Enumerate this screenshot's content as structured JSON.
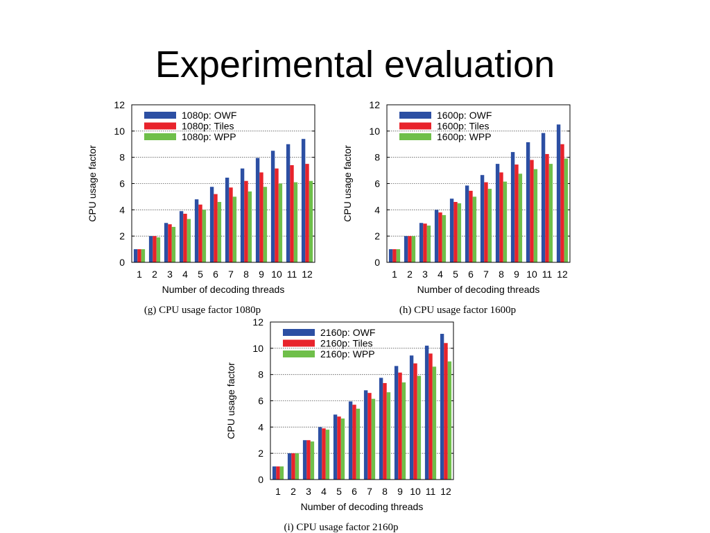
{
  "slide": {
    "title": "Experimental evaluation"
  },
  "chart_data": [
    {
      "type": "bar",
      "caption": "(g) CPU usage factor 1080p",
      "xlabel": "Number of decoding threads",
      "ylabel": "CPU usage factor",
      "ylim": [
        0,
        12
      ],
      "yticks": [
        "0",
        "2",
        "4",
        "6",
        "8",
        "10",
        "12"
      ],
      "grid": true,
      "legend": "top-left",
      "categories": [
        "1",
        "2",
        "3",
        "4",
        "5",
        "6",
        "7",
        "8",
        "9",
        "10",
        "11",
        "12"
      ],
      "series": [
        {
          "name": "1080p: OWF",
          "color": "#2c4fa3",
          "values": [
            1.0,
            2.0,
            3.0,
            3.9,
            4.8,
            5.75,
            6.45,
            7.15,
            7.95,
            8.5,
            9.0,
            9.4
          ]
        },
        {
          "name": "1080p: Tiles",
          "color": "#e8232b",
          "values": [
            1.0,
            2.0,
            2.9,
            3.7,
            4.4,
            5.2,
            5.7,
            6.2,
            6.85,
            7.15,
            7.4,
            7.5
          ]
        },
        {
          "name": "1080p: WPP",
          "color": "#6fbf4a",
          "values": [
            1.0,
            1.9,
            2.7,
            3.3,
            4.0,
            4.6,
            5.0,
            5.4,
            5.75,
            6.0,
            6.1,
            6.2
          ]
        }
      ]
    },
    {
      "type": "bar",
      "caption": "(h) CPU usage factor 1600p",
      "xlabel": "Number of decoding threads",
      "ylabel": "CPU usage factor",
      "ylim": [
        0,
        12
      ],
      "yticks": [
        "0",
        "2",
        "4",
        "6",
        "8",
        "10",
        "12"
      ],
      "grid": true,
      "legend": "top-left",
      "categories": [
        "1",
        "2",
        "3",
        "4",
        "5",
        "6",
        "7",
        "8",
        "9",
        "10",
        "11",
        "12"
      ],
      "series": [
        {
          "name": "1600p: OWF",
          "color": "#2c4fa3",
          "values": [
            1.0,
            2.0,
            3.0,
            4.0,
            4.85,
            5.85,
            6.65,
            7.5,
            8.4,
            9.15,
            9.85,
            10.5
          ]
        },
        {
          "name": "1600p: Tiles",
          "color": "#e8232b",
          "values": [
            1.0,
            2.0,
            2.95,
            3.8,
            4.6,
            5.45,
            6.1,
            6.85,
            7.45,
            7.8,
            8.25,
            9.0
          ]
        },
        {
          "name": "1600p: WPP",
          "color": "#6fbf4a",
          "values": [
            1.0,
            2.0,
            2.8,
            3.6,
            4.5,
            5.0,
            5.6,
            6.15,
            6.75,
            7.1,
            7.5,
            7.9
          ]
        }
      ]
    },
    {
      "type": "bar",
      "caption": "(i) CPU usage factor 2160p",
      "xlabel": "Number of decoding threads",
      "ylabel": "CPU usage factor",
      "ylim": [
        0,
        12
      ],
      "yticks": [
        "0",
        "2",
        "4",
        "6",
        "8",
        "10",
        "12"
      ],
      "grid": true,
      "legend": "top-left",
      "categories": [
        "1",
        "2",
        "3",
        "4",
        "5",
        "6",
        "7",
        "8",
        "9",
        "10",
        "11",
        "12"
      ],
      "series": [
        {
          "name": "2160p: OWF",
          "color": "#2c4fa3",
          "values": [
            1.0,
            2.0,
            3.0,
            4.0,
            4.95,
            5.95,
            6.8,
            7.75,
            8.65,
            9.45,
            10.2,
            11.1
          ]
        },
        {
          "name": "2160p: Tiles",
          "color": "#e8232b",
          "values": [
            1.0,
            2.0,
            3.0,
            3.9,
            4.8,
            5.7,
            6.6,
            7.35,
            8.15,
            8.85,
            9.6,
            10.4
          ]
        },
        {
          "name": "2160p: WPP",
          "color": "#6fbf4a",
          "values": [
            1.0,
            2.0,
            2.9,
            3.8,
            4.65,
            5.4,
            6.15,
            6.65,
            7.4,
            7.9,
            8.6,
            9.0
          ]
        }
      ]
    }
  ]
}
